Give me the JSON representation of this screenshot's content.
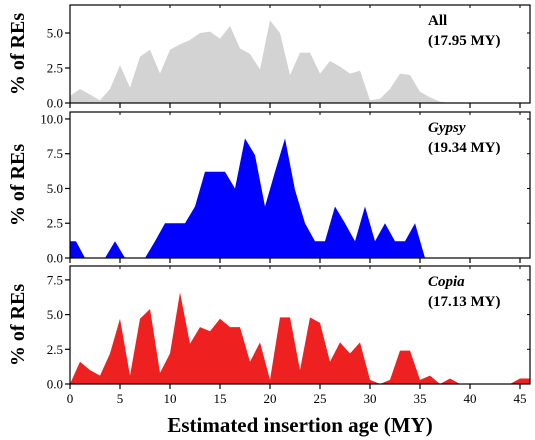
{
  "chart_data": {
    "type": "area",
    "xlabel": "Estimated insertion age (MY)",
    "ylabel": "% of REs",
    "xlim": [
      0,
      46
    ],
    "xticks": [
      0,
      5,
      10,
      15,
      20,
      25,
      30,
      35,
      40,
      45
    ],
    "grid": false,
    "panels": [
      {
        "title": "All",
        "subtitle": "(17.95 MY)",
        "title_italic": false,
        "color": "#d3d3d3",
        "ylim": [
          0,
          7
        ],
        "yticks": [
          0.0,
          2.5,
          5.0
        ],
        "ytick_labels": [
          "0.0",
          "2.5",
          "5.0"
        ],
        "x": [
          0,
          1,
          2,
          3,
          4,
          5,
          6,
          7,
          8,
          9,
          10,
          11,
          12,
          13,
          14,
          15,
          16,
          17,
          18,
          19,
          20,
          21,
          22,
          23,
          24,
          25,
          26,
          27,
          28,
          29,
          30,
          31,
          32,
          33,
          34,
          35,
          36,
          37,
          38,
          46
        ],
        "y": [
          0.5,
          1.0,
          0.6,
          0.2,
          1.0,
          2.7,
          1.1,
          3.3,
          3.8,
          2.1,
          3.8,
          4.2,
          4.5,
          5.0,
          5.1,
          4.6,
          5.5,
          3.9,
          3.5,
          2.4,
          5.9,
          5.0,
          2.0,
          3.6,
          3.6,
          2.1,
          3.0,
          2.6,
          2.1,
          2.3,
          0.2,
          0.3,
          1.0,
          2.1,
          2.0,
          0.8,
          0.4,
          0.1,
          0.0,
          0.0
        ]
      },
      {
        "title": "Gypsy",
        "subtitle": "(19.34 MY)",
        "title_italic": true,
        "color": "#0000ff",
        "ylim": [
          0,
          10.5
        ],
        "yticks": [
          0.0,
          2.5,
          5.0,
          7.5,
          10.0
        ],
        "ytick_labels": [
          "0.0",
          "2.5",
          "5.0",
          "7.5",
          "10.0"
        ],
        "x": [
          0,
          0.6,
          1.5,
          3.5,
          4.5,
          5.5,
          7.5,
          8.5,
          9.5,
          10.5,
          11.5,
          12.5,
          13.5,
          14.5,
          15.5,
          16.5,
          17.5,
          18.5,
          19.5,
          20.5,
          21.5,
          22.5,
          23.5,
          24.5,
          25.5,
          26.5,
          27.5,
          28.5,
          29.5,
          30.5,
          31.5,
          32.5,
          33.5,
          34.5,
          35.5,
          46
        ],
        "y": [
          1.2,
          1.2,
          0.0,
          0.0,
          1.2,
          0.0,
          0.0,
          1.2,
          2.5,
          2.5,
          2.5,
          3.7,
          6.2,
          6.2,
          6.2,
          5.0,
          8.6,
          7.4,
          3.7,
          6.2,
          8.6,
          4.9,
          2.5,
          1.2,
          1.2,
          3.7,
          2.5,
          1.2,
          3.7,
          1.2,
          2.5,
          1.2,
          1.2,
          2.5,
          0.0,
          0.0
        ]
      },
      {
        "title": "Copia",
        "subtitle": "(17.13 MY)",
        "title_italic": true,
        "color": "#ee2020",
        "ylim": [
          0,
          8.5
        ],
        "yticks": [
          0.0,
          2.5,
          5.0,
          7.5
        ],
        "ytick_labels": [
          "0.0",
          "2.5",
          "5.0",
          "7.5"
        ],
        "x": [
          0,
          1,
          2,
          3,
          4,
          5,
          6,
          7,
          8,
          9,
          10,
          11,
          12,
          13,
          14,
          15,
          16,
          17,
          18,
          19,
          20,
          21,
          22,
          23,
          24,
          25,
          26,
          27,
          28,
          29,
          30,
          31,
          32,
          33,
          34,
          35,
          36,
          37,
          38,
          39,
          40,
          44,
          45,
          46
        ],
        "y": [
          0.0,
          1.6,
          1.0,
          0.6,
          2.2,
          4.7,
          0.6,
          4.7,
          5.4,
          0.8,
          2.2,
          6.6,
          2.9,
          4.1,
          3.8,
          4.7,
          4.1,
          4.1,
          1.6,
          3.0,
          0.3,
          4.8,
          4.8,
          1.0,
          4.8,
          4.4,
          1.6,
          3.0,
          2.2,
          3.0,
          0.3,
          0.0,
          0.3,
          2.4,
          2.4,
          0.3,
          0.6,
          0.0,
          0.4,
          0.0,
          0.0,
          0.0,
          0.4,
          0.4
        ]
      }
    ]
  }
}
